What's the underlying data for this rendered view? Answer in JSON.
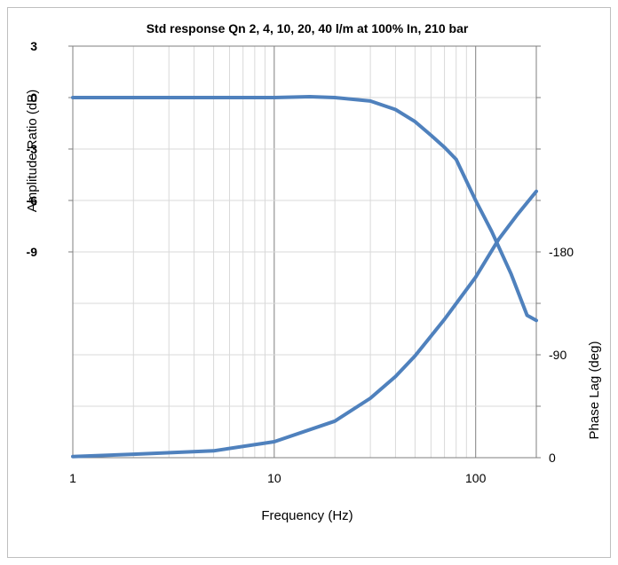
{
  "chart_data": {
    "type": "line",
    "title": "Std response Qn 2, 4, 10, 20, 40 l/m at 100% In, 210 bar",
    "xlabel": "Frequency (Hz)",
    "ylabel_left": "Amplitude Ratio (dB)",
    "ylabel_right": "Phase Lag (deg)",
    "x_scale": "log",
    "xlim": [
      1,
      200
    ],
    "x_tick_labels": [
      "1",
      "10",
      "100"
    ],
    "ylim_left": [
      -21,
      3
    ],
    "y_left_tick_labels": [
      "3",
      "0",
      "-3",
      "-6",
      "-9"
    ],
    "ylim_right": [
      0,
      360
    ],
    "y_right_tick_labels": [
      "-180",
      "-90",
      "0"
    ],
    "grid": true,
    "series_color": "#4f81bd",
    "series": [
      {
        "axis": "left",
        "x": [
          1,
          2,
          5,
          10,
          15,
          20,
          30,
          40,
          50,
          60,
          70,
          80,
          100,
          120,
          150,
          180,
          200
        ],
        "values": [
          0,
          0,
          0,
          0,
          0.05,
          0,
          -0.2,
          -0.7,
          -1.4,
          -2.2,
          -2.9,
          -3.6,
          -6.0,
          -7.8,
          -10.3,
          -12.7,
          -13.0
        ]
      },
      {
        "axis": "right",
        "x": [
          1,
          2,
          5,
          10,
          20,
          30,
          40,
          50,
          70,
          100,
          130,
          160,
          200
        ],
        "values": [
          1,
          3,
          6,
          14,
          32,
          52,
          71,
          89,
          121,
          158,
          191,
          212,
          233
        ]
      }
    ]
  }
}
